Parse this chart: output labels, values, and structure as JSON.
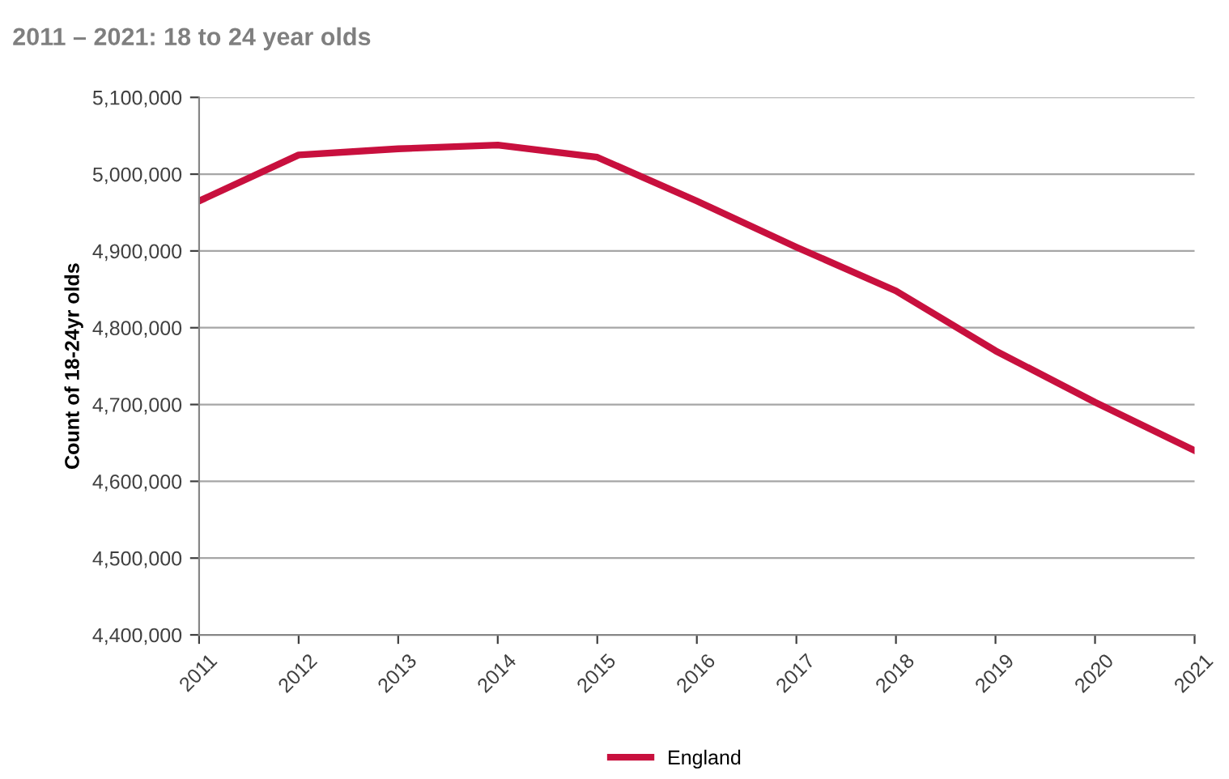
{
  "chart_data": {
    "type": "line",
    "title": "2011 – 2021: 18 to 24 year olds",
    "ylabel": "Count of 18-24yr olds",
    "categories": [
      "2011",
      "2012",
      "2013",
      "2014",
      "2015",
      "2016",
      "2017",
      "2018",
      "2019",
      "2020",
      "2021"
    ],
    "series": [
      {
        "name": "England",
        "color": "#c8103e",
        "values": [
          4965000,
          5025000,
          5033000,
          5038000,
          5022000,
          4965000,
          4905000,
          4848000,
          4770000,
          4703000,
          4640000
        ]
      }
    ],
    "ylim": [
      4400000,
      5100000
    ],
    "yticks": [
      {
        "value": 4400000,
        "label": "4,400,000"
      },
      {
        "value": 4500000,
        "label": "4,500,000"
      },
      {
        "value": 4600000,
        "label": "4,600,000"
      },
      {
        "value": 4700000,
        "label": "4,700,000"
      },
      {
        "value": 4800000,
        "label": "4,800,000"
      },
      {
        "value": 4900000,
        "label": "4,900,000"
      },
      {
        "value": 5000000,
        "label": "5,000,000"
      },
      {
        "value": 5100000,
        "label": "5,100,000"
      }
    ],
    "grid": "y",
    "legend": "bottom",
    "marker": "none",
    "line_style": "solid"
  }
}
